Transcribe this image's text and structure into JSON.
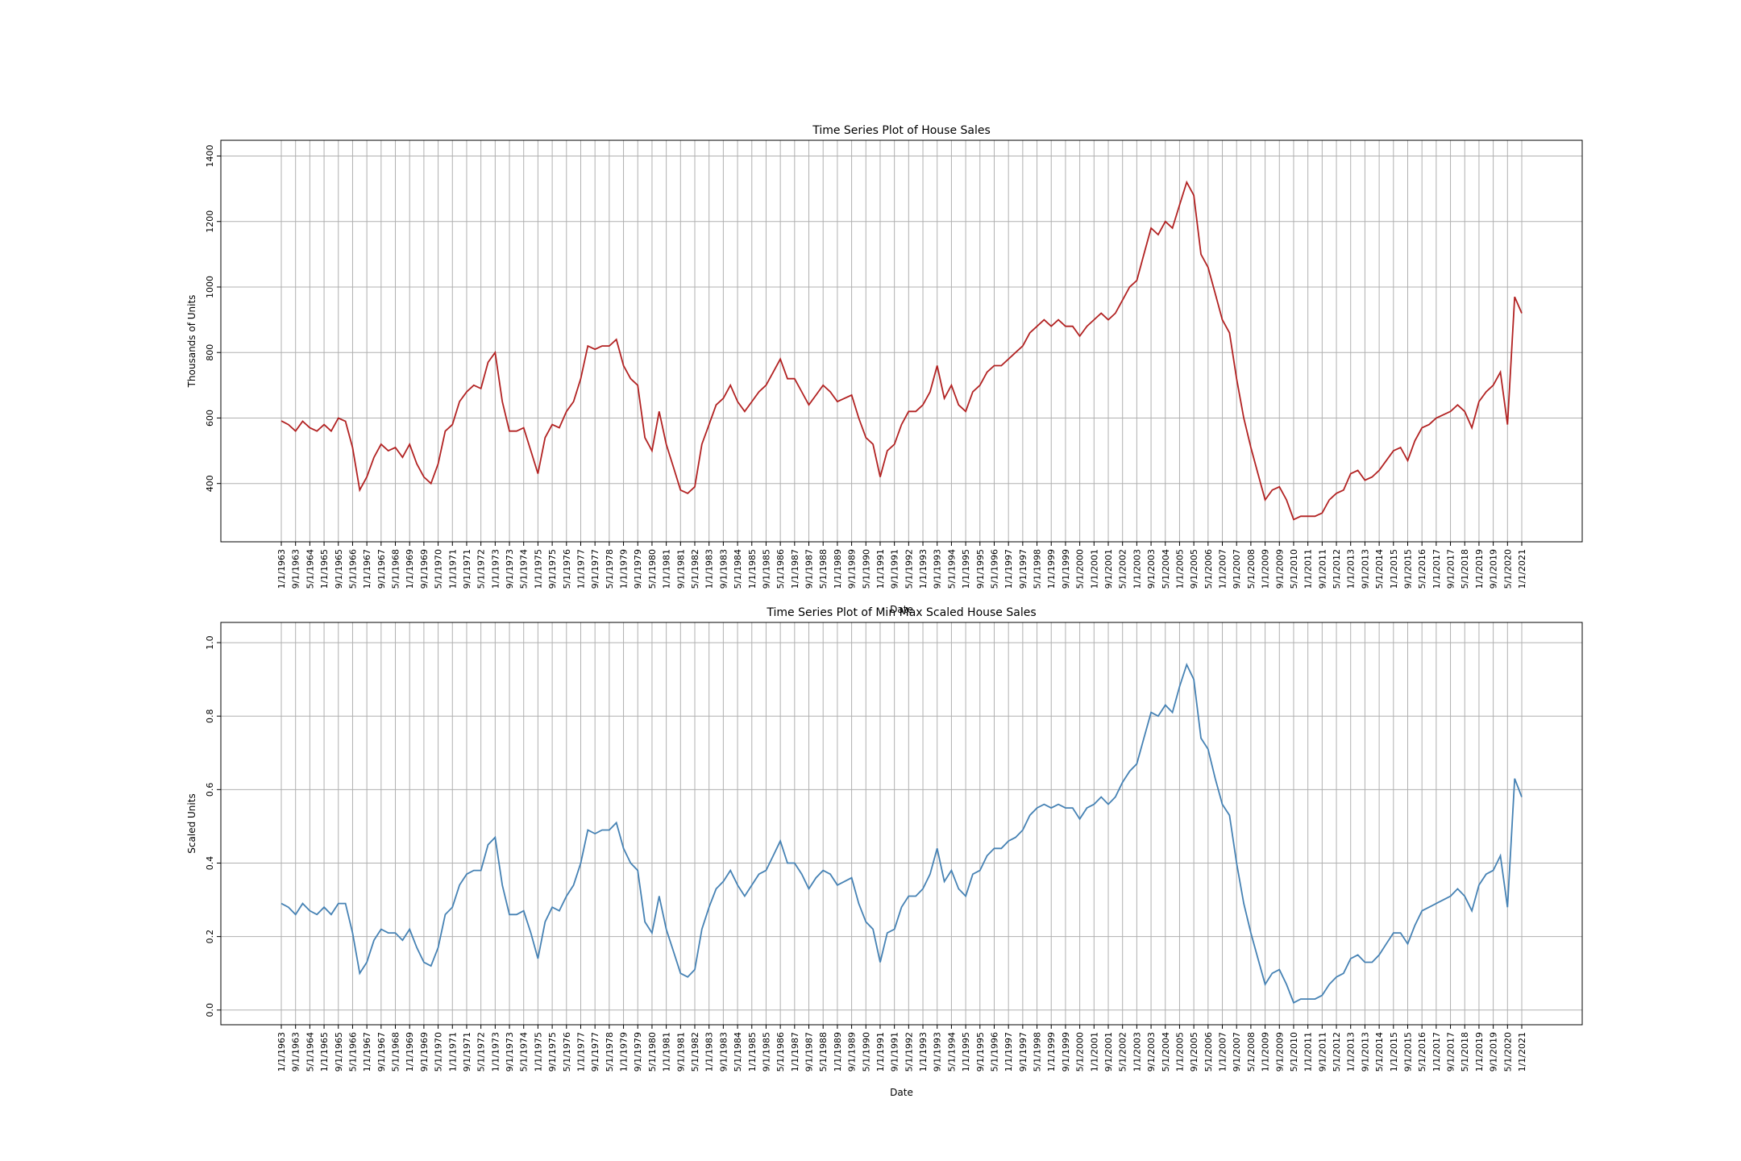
{
  "chart_data": [
    {
      "type": "line",
      "title": "Time Series Plot of House Sales",
      "xlabel": "Date",
      "ylabel": "Thousands of Units",
      "color": "#b22222",
      "grid": true,
      "ylim": [
        222,
        1448
      ],
      "yticks": [
        400,
        600,
        800,
        1000,
        1200,
        1400
      ],
      "x": [
        "1/1/1963",
        "5/1/1963",
        "9/1/1963",
        "1/1/1964",
        "5/1/1964",
        "9/1/1964",
        "1/1/1965",
        "5/1/1965",
        "9/1/1965",
        "1/1/1966",
        "5/1/1966",
        "9/1/1966",
        "1/1/1967",
        "5/1/1967",
        "9/1/1967",
        "1/1/1968",
        "5/1/1968",
        "9/1/1968",
        "1/1/1969",
        "5/1/1969",
        "9/1/1969",
        "1/1/1970",
        "5/1/1970",
        "9/1/1970",
        "1/1/1971",
        "5/1/1971",
        "9/1/1971",
        "1/1/1972",
        "5/1/1972",
        "9/1/1972",
        "1/1/1973",
        "5/1/1973",
        "9/1/1973",
        "1/1/1974",
        "5/1/1974",
        "9/1/1974",
        "1/1/1975",
        "5/1/1975",
        "9/1/1975",
        "1/1/1976",
        "5/1/1976",
        "9/1/1976",
        "1/1/1977",
        "5/1/1977",
        "9/1/1977",
        "1/1/1978",
        "5/1/1978",
        "9/1/1978",
        "1/1/1979",
        "5/1/1979",
        "9/1/1979",
        "1/1/1980",
        "5/1/1980",
        "9/1/1980",
        "1/1/1981",
        "5/1/1981",
        "9/1/1981",
        "1/1/1982",
        "5/1/1982",
        "9/1/1982",
        "1/1/1983",
        "5/1/1983",
        "9/1/1983",
        "1/1/1984",
        "5/1/1984",
        "9/1/1984",
        "1/1/1985",
        "5/1/1985",
        "9/1/1985",
        "1/1/1986",
        "5/1/1986",
        "9/1/1986",
        "1/1/1987",
        "5/1/1987",
        "9/1/1987",
        "1/1/1988",
        "5/1/1988",
        "9/1/1988",
        "1/1/1989",
        "5/1/1989",
        "9/1/1989",
        "1/1/1990",
        "5/1/1990",
        "9/1/1990",
        "1/1/1991",
        "5/1/1991",
        "9/1/1991",
        "1/1/1992",
        "5/1/1992",
        "9/1/1992",
        "1/1/1993",
        "5/1/1993",
        "9/1/1993",
        "1/1/1994",
        "5/1/1994",
        "9/1/1994",
        "1/1/1995",
        "5/1/1995",
        "9/1/1995",
        "1/1/1996",
        "5/1/1996",
        "9/1/1996",
        "1/1/1997",
        "5/1/1997",
        "9/1/1997",
        "1/1/1998",
        "5/1/1998",
        "9/1/1998",
        "1/1/1999",
        "5/1/1999",
        "9/1/1999",
        "1/1/2000",
        "5/1/2000",
        "9/1/2000",
        "1/1/2001",
        "5/1/2001",
        "9/1/2001",
        "1/1/2002",
        "5/1/2002",
        "9/1/2002",
        "1/1/2003",
        "5/1/2003",
        "9/1/2003",
        "1/1/2004",
        "5/1/2004",
        "9/1/2004",
        "1/1/2005",
        "5/1/2005",
        "9/1/2005",
        "1/1/2006",
        "5/1/2006",
        "9/1/2006",
        "1/1/2007",
        "5/1/2007",
        "9/1/2007",
        "1/1/2008",
        "5/1/2008",
        "9/1/2008",
        "1/1/2009",
        "5/1/2009",
        "9/1/2009",
        "1/1/2010",
        "5/1/2010",
        "9/1/2010",
        "1/1/2011",
        "5/1/2011",
        "9/1/2011",
        "1/1/2012",
        "5/1/2012",
        "9/1/2012",
        "1/1/2013",
        "5/1/2013",
        "9/1/2013",
        "1/1/2014",
        "5/1/2014",
        "9/1/2014",
        "1/1/2015",
        "5/1/2015",
        "9/1/2015",
        "1/1/2016",
        "5/1/2016",
        "9/1/2016",
        "1/1/2017",
        "5/1/2017",
        "9/1/2017",
        "1/1/2018",
        "5/1/2018",
        "9/1/2018",
        "1/1/2019",
        "5/1/2019",
        "9/1/2019",
        "1/1/2020",
        "5/1/2020",
        "9/1/2020",
        "1/1/2021"
      ],
      "values": [
        591,
        580,
        560,
        590,
        570,
        560,
        580,
        560,
        600,
        590,
        510,
        380,
        420,
        480,
        520,
        500,
        510,
        480,
        520,
        460,
        420,
        400,
        460,
        560,
        580,
        650,
        680,
        700,
        690,
        770,
        800,
        650,
        560,
        560,
        570,
        500,
        430,
        540,
        580,
        570,
        620,
        650,
        720,
        820,
        810,
        820,
        820,
        840,
        760,
        720,
        700,
        540,
        500,
        620,
        520,
        450,
        380,
        370,
        390,
        520,
        580,
        640,
        660,
        700,
        650,
        620,
        650,
        680,
        700,
        740,
        780,
        720,
        720,
        680,
        640,
        670,
        700,
        680,
        650,
        660,
        670,
        600,
        540,
        520,
        420,
        500,
        520,
        580,
        620,
        620,
        640,
        680,
        760,
        660,
        700,
        640,
        620,
        680,
        700,
        740,
        760,
        760,
        780,
        800,
        820,
        860,
        880,
        900,
        880,
        900,
        880,
        880,
        850,
        880,
        900,
        920,
        900,
        920,
        960,
        1000,
        1020,
        1100,
        1180,
        1160,
        1200,
        1180,
        1250,
        1320,
        1280,
        1100,
        1060,
        980,
        900,
        860,
        720,
        600,
        510,
        430,
        350,
        380,
        390,
        350,
        290,
        300,
        300,
        300,
        310,
        350,
        370,
        380,
        430,
        440,
        410,
        420,
        440,
        470,
        500,
        510,
        470,
        530,
        570,
        580,
        600,
        610,
        620,
        640,
        620,
        570,
        650,
        680,
        700,
        740,
        580,
        970,
        920
      ],
      "xticks": [
        "1/1/1963",
        "9/1/1963",
        "5/1/1964",
        "1/1/1965",
        "9/1/1965",
        "5/1/1966",
        "1/1/1967",
        "9/1/1967",
        "5/1/1968",
        "1/1/1969",
        "9/1/1969",
        "5/1/1970",
        "1/1/1971",
        "9/1/1971",
        "5/1/1972",
        "1/1/1973",
        "9/1/1973",
        "5/1/1974",
        "1/1/1975",
        "9/1/1975",
        "5/1/1976",
        "1/1/1977",
        "9/1/1977",
        "5/1/1978",
        "1/1/1979",
        "9/1/1979",
        "5/1/1980",
        "1/1/1981",
        "9/1/1981",
        "5/1/1982",
        "1/1/1983",
        "9/1/1983",
        "5/1/1984",
        "1/1/1985",
        "9/1/1985",
        "5/1/1986",
        "1/1/1987",
        "9/1/1987",
        "5/1/1988",
        "1/1/1989",
        "9/1/1989",
        "5/1/1990",
        "1/1/1991",
        "9/1/1991",
        "5/1/1992",
        "1/1/1993",
        "9/1/1993",
        "5/1/1994",
        "1/1/1995",
        "9/1/1995",
        "5/1/1996",
        "1/1/1997",
        "9/1/1997",
        "5/1/1998",
        "1/1/1999",
        "9/1/1999",
        "5/1/2000",
        "1/1/2001",
        "9/1/2001",
        "5/1/2002",
        "1/1/2003",
        "9/1/2003",
        "5/1/2004",
        "1/1/2005",
        "9/1/2005",
        "5/1/2006",
        "1/1/2007",
        "9/1/2007",
        "5/1/2008",
        "1/1/2009",
        "9/1/2009",
        "5/1/2010",
        "1/1/2011",
        "9/1/2011",
        "5/1/2012",
        "1/1/2013",
        "9/1/2013",
        "5/1/2014",
        "1/1/2015",
        "9/1/2015",
        "5/1/2016",
        "1/1/2017",
        "9/1/2017",
        "5/1/2018",
        "1/1/2019",
        "9/1/2019",
        "5/1/2020",
        "1/1/2021"
      ]
    },
    {
      "type": "line",
      "title": "Time Series Plot of Min Max Scaled House Sales",
      "xlabel": "Date",
      "ylabel": "Scaled Units",
      "color": "#4682b4",
      "grid": true,
      "ylim": [
        -0.04,
        1.055
      ],
      "yticks": [
        {
          "value": 0,
          "label": "0.0"
        },
        0.2,
        0.4,
        0.6,
        0.8,
        {
          "value": 1,
          "label": "1.0"
        }
      ],
      "x": [
        "1/1/1963",
        "5/1/1963",
        "9/1/1963",
        "1/1/1964",
        "5/1/1964",
        "9/1/1964",
        "1/1/1965",
        "5/1/1965",
        "9/1/1965",
        "1/1/1966",
        "5/1/1966",
        "9/1/1966",
        "1/1/1967",
        "5/1/1967",
        "9/1/1967",
        "1/1/1968",
        "5/1/1968",
        "9/1/1968",
        "1/1/1969",
        "5/1/1969",
        "9/1/1969",
        "1/1/1970",
        "5/1/1970",
        "9/1/1970",
        "1/1/1971",
        "5/1/1971",
        "9/1/1971",
        "1/1/1972",
        "5/1/1972",
        "9/1/1972",
        "1/1/1973",
        "5/1/1973",
        "9/1/1973",
        "1/1/1974",
        "5/1/1974",
        "9/1/1974",
        "1/1/1975",
        "5/1/1975",
        "9/1/1975",
        "1/1/1976",
        "5/1/1976",
        "9/1/1976",
        "1/1/1977",
        "5/1/1977",
        "9/1/1977",
        "1/1/1978",
        "5/1/1978",
        "9/1/1978",
        "1/1/1979",
        "5/1/1979",
        "9/1/1979",
        "1/1/1980",
        "5/1/1980",
        "9/1/1980",
        "1/1/1981",
        "5/1/1981",
        "9/1/1981",
        "1/1/1982",
        "5/1/1982",
        "9/1/1982",
        "1/1/1983",
        "5/1/1983",
        "9/1/1983",
        "1/1/1984",
        "5/1/1984",
        "9/1/1984",
        "1/1/1985",
        "5/1/1985",
        "9/1/1985",
        "1/1/1986",
        "5/1/1986",
        "9/1/1986",
        "1/1/1987",
        "5/1/1987",
        "9/1/1987",
        "1/1/1988",
        "5/1/1988",
        "9/1/1988",
        "1/1/1989",
        "5/1/1989",
        "9/1/1989",
        "1/1/1990",
        "5/1/1990",
        "9/1/1990",
        "1/1/1991",
        "5/1/1991",
        "9/1/1991",
        "1/1/1992",
        "5/1/1992",
        "9/1/1992",
        "1/1/1993",
        "5/1/1993",
        "9/1/1993",
        "1/1/1994",
        "5/1/1994",
        "9/1/1994",
        "1/1/1995",
        "5/1/1995",
        "9/1/1995",
        "1/1/1996",
        "5/1/1996",
        "9/1/1996",
        "1/1/1997",
        "5/1/1997",
        "9/1/1997",
        "1/1/1998",
        "5/1/1998",
        "9/1/1998",
        "1/1/1999",
        "5/1/1999",
        "9/1/1999",
        "1/1/2000",
        "5/1/2000",
        "9/1/2000",
        "1/1/2001",
        "5/1/2001",
        "9/1/2001",
        "1/1/2002",
        "5/1/2002",
        "9/1/2002",
        "1/1/2003",
        "5/1/2003",
        "9/1/2003",
        "1/1/2004",
        "5/1/2004",
        "9/1/2004",
        "1/1/2005",
        "5/1/2005",
        "9/1/2005",
        "1/1/2006",
        "5/1/2006",
        "9/1/2006",
        "1/1/2007",
        "5/1/2007",
        "9/1/2007",
        "1/1/2008",
        "5/1/2008",
        "9/1/2008",
        "1/1/2009",
        "5/1/2009",
        "9/1/2009",
        "1/1/2010",
        "5/1/2010",
        "9/1/2010",
        "1/1/2011",
        "5/1/2011",
        "9/1/2011",
        "1/1/2012",
        "5/1/2012",
        "9/1/2012",
        "1/1/2013",
        "5/1/2013",
        "9/1/2013",
        "1/1/2014",
        "5/1/2014",
        "9/1/2014",
        "1/1/2015",
        "5/1/2015",
        "9/1/2015",
        "1/1/2016",
        "5/1/2016",
        "9/1/2016",
        "1/1/2017",
        "5/1/2017",
        "9/1/2017",
        "1/1/2018",
        "5/1/2018",
        "9/1/2018",
        "1/1/2019",
        "5/1/2019",
        "9/1/2019",
        "1/1/2020",
        "5/1/2020",
        "9/1/2020",
        "1/1/2021"
      ],
      "values": [
        0.29,
        0.28,
        0.26,
        0.29,
        0.27,
        0.26,
        0.28,
        0.26,
        0.29,
        0.29,
        0.21,
        0.1,
        0.13,
        0.19,
        0.22,
        0.21,
        0.21,
        0.19,
        0.22,
        0.17,
        0.13,
        0.12,
        0.17,
        0.26,
        0.28,
        0.34,
        0.37,
        0.38,
        0.38,
        0.45,
        0.47,
        0.34,
        0.26,
        0.26,
        0.27,
        0.21,
        0.14,
        0.24,
        0.28,
        0.27,
        0.31,
        0.34,
        0.4,
        0.49,
        0.48,
        0.49,
        0.49,
        0.51,
        0.44,
        0.4,
        0.38,
        0.24,
        0.21,
        0.31,
        0.22,
        0.16,
        0.1,
        0.09,
        0.11,
        0.22,
        0.28,
        0.33,
        0.35,
        0.38,
        0.34,
        0.31,
        0.34,
        0.37,
        0.38,
        0.42,
        0.46,
        0.4,
        0.4,
        0.37,
        0.33,
        0.36,
        0.38,
        0.37,
        0.34,
        0.35,
        0.36,
        0.29,
        0.24,
        0.22,
        0.13,
        0.21,
        0.22,
        0.28,
        0.31,
        0.31,
        0.33,
        0.37,
        0.44,
        0.35,
        0.38,
        0.33,
        0.31,
        0.37,
        0.38,
        0.42,
        0.44,
        0.44,
        0.46,
        0.47,
        0.49,
        0.53,
        0.55,
        0.56,
        0.55,
        0.56,
        0.55,
        0.55,
        0.52,
        0.55,
        0.56,
        0.58,
        0.56,
        0.58,
        0.62,
        0.65,
        0.67,
        0.74,
        0.81,
        0.8,
        0.83,
        0.81,
        0.88,
        0.94,
        0.9,
        0.74,
        0.71,
        0.63,
        0.56,
        0.53,
        0.4,
        0.29,
        0.21,
        0.14,
        0.07,
        0.1,
        0.11,
        0.07,
        0.02,
        0.03,
        0.03,
        0.03,
        0.04,
        0.07,
        0.09,
        0.1,
        0.14,
        0.15,
        0.13,
        0.13,
        0.15,
        0.18,
        0.21,
        0.21,
        0.18,
        0.23,
        0.27,
        0.28,
        0.29,
        0.3,
        0.31,
        0.33,
        0.31,
        0.27,
        0.34,
        0.37,
        0.38,
        0.42,
        0.28,
        0.63,
        0.58
      ],
      "xticks": [
        "1/1/1963",
        "9/1/1963",
        "5/1/1964",
        "1/1/1965",
        "9/1/1965",
        "5/1/1966",
        "1/1/1967",
        "9/1/1967",
        "5/1/1968",
        "1/1/1969",
        "9/1/1969",
        "5/1/1970",
        "1/1/1971",
        "9/1/1971",
        "5/1/1972",
        "1/1/1973",
        "9/1/1973",
        "5/1/1974",
        "1/1/1975",
        "9/1/1975",
        "5/1/1976",
        "1/1/1977",
        "9/1/1977",
        "5/1/1978",
        "1/1/1979",
        "9/1/1979",
        "5/1/1980",
        "1/1/1981",
        "9/1/1981",
        "5/1/1982",
        "1/1/1983",
        "9/1/1983",
        "5/1/1984",
        "1/1/1985",
        "9/1/1985",
        "5/1/1986",
        "1/1/1987",
        "9/1/1987",
        "5/1/1988",
        "1/1/1989",
        "9/1/1989",
        "5/1/1990",
        "1/1/1991",
        "9/1/1991",
        "5/1/1992",
        "1/1/1993",
        "9/1/1993",
        "5/1/1994",
        "1/1/1995",
        "9/1/1995",
        "5/1/1996",
        "1/1/1997",
        "9/1/1997",
        "5/1/1998",
        "1/1/1999",
        "9/1/1999",
        "5/1/2000",
        "1/1/2001",
        "9/1/2001",
        "5/1/2002",
        "1/1/2003",
        "9/1/2003",
        "5/1/2004",
        "1/1/2005",
        "9/1/2005",
        "5/1/2006",
        "1/1/2007",
        "9/1/2007",
        "5/1/2008",
        "1/1/2009",
        "9/1/2009",
        "5/1/2010",
        "1/1/2011",
        "9/1/2011",
        "5/1/2012",
        "1/1/2013",
        "9/1/2013",
        "5/1/2014",
        "1/1/2015",
        "9/1/2015",
        "5/1/2016",
        "1/1/2017",
        "9/1/2017",
        "5/1/2018",
        "1/1/2019",
        "9/1/2019",
        "5/1/2020",
        "1/1/2021"
      ]
    }
  ]
}
